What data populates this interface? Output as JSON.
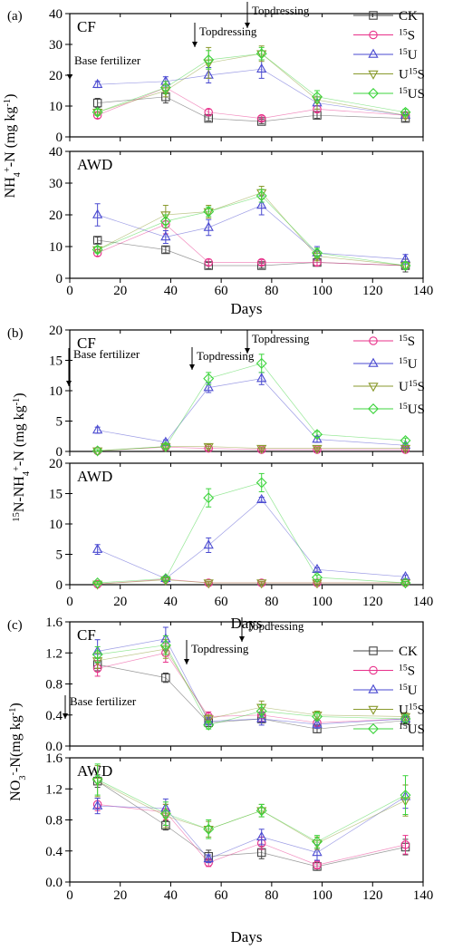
{
  "chart_data": [
    {
      "type": "scatter",
      "panel_label": "(a)",
      "ylabel": "NH4+-N (mg kg-1)",
      "xlabel": "Days",
      "xlim": [
        0,
        140
      ],
      "x_ticks": [
        0,
        20,
        40,
        60,
        80,
        100,
        120,
        140
      ],
      "legend_position": "top-right",
      "legend": [
        "CK",
        "15S",
        "15U",
        "U15S",
        "15US"
      ],
      "annotations": [
        {
          "text": "Base fertilizer",
          "x": 0
        },
        {
          "text": "Topdressing",
          "x": 47
        },
        {
          "text": "Topdressing",
          "x": 71
        }
      ],
      "x": [
        11,
        38,
        55,
        76,
        98,
        133
      ],
      "subplots": [
        {
          "title": "CF",
          "ylim": [
            0,
            40
          ],
          "y_ticks": [
            0,
            10,
            20,
            30,
            40
          ],
          "series": [
            {
              "name": "CK",
              "color": "#444444",
              "marker": "square",
              "values": [
                11,
                13,
                6,
                5,
                7,
                6
              ],
              "errors": [
                1.5,
                2,
                0.8,
                0.7,
                1,
                1
              ]
            },
            {
              "name": "15S",
              "color": "#e8308a",
              "marker": "circle",
              "values": [
                7,
                16,
                8,
                6,
                9,
                7
              ],
              "errors": [
                1,
                2,
                1,
                0.8,
                1,
                1
              ]
            },
            {
              "name": "15U",
              "color": "#4a4ad0",
              "marker": "triangle-up",
              "values": [
                17,
                18,
                20,
                22,
                11,
                7
              ],
              "errors": [
                1,
                1.5,
                2.5,
                3,
                2,
                1
              ]
            },
            {
              "name": "U15S",
              "color": "#8a9a2e",
              "marker": "triangle-down",
              "values": [
                8,
                15,
                24,
                27,
                12,
                7
              ],
              "errors": [
                1,
                2,
                5,
                2.5,
                3,
                1
              ]
            },
            {
              "name": "15US",
              "color": "#3cd43c",
              "marker": "diamond",
              "values": [
                8,
                16,
                25,
                27,
                13,
                8
              ],
              "errors": [
                1,
                2,
                3,
                2,
                2,
                1
              ]
            }
          ]
        },
        {
          "title": "AWD",
          "ylim": [
            0,
            40
          ],
          "y_ticks": [
            0,
            10,
            20,
            30,
            40
          ],
          "series": [
            {
              "name": "CK",
              "color": "#444444",
              "marker": "square",
              "values": [
                12,
                9,
                4,
                4,
                5,
                4
              ],
              "errors": [
                1,
                1,
                1,
                0.8,
                1,
                2
              ]
            },
            {
              "name": "15S",
              "color": "#e8308a",
              "marker": "circle",
              "values": [
                8,
                17,
                5,
                5,
                5,
                4
              ],
              "errors": [
                1,
                3,
                1,
                0.8,
                1,
                1
              ]
            },
            {
              "name": "15U",
              "color": "#4a4ad0",
              "marker": "triangle-up",
              "values": [
                20,
                13,
                16,
                23,
                8,
                6
              ],
              "errors": [
                3.5,
                2,
                2.5,
                3,
                2,
                1.5
              ]
            },
            {
              "name": "U15S",
              "color": "#8a9a2e",
              "marker": "triangle-down",
              "values": [
                9,
                20,
                21,
                27,
                7,
                4
              ],
              "errors": [
                1,
                3,
                2,
                2,
                1.5,
                1
              ]
            },
            {
              "name": "15US",
              "color": "#3cd43c",
              "marker": "diamond",
              "values": [
                9,
                18,
                21,
                26,
                8,
                4
              ],
              "errors": [
                1,
                2,
                1.5,
                2,
                1.5,
                1
              ]
            }
          ]
        }
      ]
    },
    {
      "type": "scatter",
      "panel_label": "(b)",
      "ylabel": "15N-NH4+-N (mg kg-1)",
      "xlabel": "Days",
      "xlim": [
        0,
        140
      ],
      "x_ticks": [
        0,
        20,
        40,
        60,
        80,
        100,
        120,
        140
      ],
      "legend_position": "top-right",
      "legend": [
        "15S",
        "15U",
        "U15S",
        "15US"
      ],
      "annotations": [
        {
          "text": "Base fertilizer",
          "x": 0
        },
        {
          "text": "Topdressing",
          "x": 47
        },
        {
          "text": "Topdressing",
          "x": 71
        }
      ],
      "x": [
        11,
        38,
        55,
        76,
        98,
        133
      ],
      "subplots": [
        {
          "title": "CF",
          "ylim": [
            0,
            20
          ],
          "y_ticks": [
            0,
            5,
            10,
            15,
            20
          ],
          "series": [
            {
              "name": "15S",
              "color": "#e8308a",
              "marker": "circle",
              "values": [
                0.1,
                0.7,
                0.5,
                0.3,
                0.3,
                0.3
              ],
              "errors": [
                0.2,
                0.3,
                0.3,
                0.2,
                0.2,
                0.2
              ]
            },
            {
              "name": "15U",
              "color": "#4a4ad0",
              "marker": "triangle-up",
              "values": [
                3.5,
                1.5,
                10.5,
                12,
                2,
                1
              ],
              "errors": [
                0.5,
                0.4,
                0.8,
                1,
                0.5,
                0.3
              ]
            },
            {
              "name": "U15S",
              "color": "#8a9a2e",
              "marker": "triangle-down",
              "values": [
                0.1,
                0.8,
                0.8,
                0.5,
                0.5,
                0.5
              ],
              "errors": [
                0.2,
                0.3,
                0.3,
                0.2,
                0.2,
                0.2
              ]
            },
            {
              "name": "15US",
              "color": "#3cd43c",
              "marker": "diamond",
              "values": [
                0.1,
                0.8,
                12,
                14.5,
                2.8,
                1.8
              ],
              "errors": [
                0.2,
                0.4,
                1,
                1.5,
                0.5,
                0.4
              ]
            }
          ]
        },
        {
          "title": "AWD",
          "ylim": [
            0,
            20
          ],
          "y_ticks": [
            0,
            5,
            10,
            15,
            20
          ],
          "series": [
            {
              "name": "15S",
              "color": "#e8308a",
              "marker": "circle",
              "values": [
                0.1,
                0.9,
                0.3,
                0.3,
                0.3,
                0.3
              ],
              "errors": [
                0.2,
                0.3,
                0.2,
                0.2,
                0.2,
                0.2
              ]
            },
            {
              "name": "15U",
              "color": "#4a4ad0",
              "marker": "triangle-up",
              "values": [
                5.8,
                1,
                6.5,
                14,
                2.5,
                1.3
              ],
              "errors": [
                0.8,
                0.3,
                1.2,
                0.4,
                0.3,
                0.3
              ]
            },
            {
              "name": "U15S",
              "color": "#8a9a2e",
              "marker": "triangle-down",
              "values": [
                0.1,
                0.8,
                0.3,
                0.3,
                0.3,
                0.3
              ],
              "errors": [
                0.2,
                0.3,
                0.2,
                0.2,
                0.2,
                0.2
              ]
            },
            {
              "name": "15US",
              "color": "#3cd43c",
              "marker": "diamond",
              "values": [
                0.3,
                1,
                14.3,
                16.8,
                1.2,
                0.3
              ],
              "errors": [
                0.2,
                0.3,
                1.5,
                1.5,
                0.4,
                0.2
              ]
            }
          ]
        }
      ]
    },
    {
      "type": "scatter",
      "panel_label": "(c)",
      "ylabel": "NO3--N(mg kg-1)",
      "xlabel": "Days",
      "xlim": [
        0,
        140
      ],
      "x_ticks": [
        0,
        20,
        40,
        60,
        80,
        100,
        120,
        140
      ],
      "legend_position": "top-right",
      "legend": [
        "CK",
        "15S",
        "15U",
        "U15S",
        "15US"
      ],
      "annotations": [
        {
          "text": "Base fertilizer",
          "x": 0
        },
        {
          "text": "Topdressing",
          "x": 47
        },
        {
          "text": "Topdressing",
          "x": 71
        }
      ],
      "x": [
        11,
        38,
        55,
        76,
        98,
        133
      ],
      "subplots": [
        {
          "title": "CF",
          "ylim": [
            0,
            1.6
          ],
          "y_ticks": [
            0.0,
            0.4,
            0.8,
            1.2,
            1.6
          ],
          "series": [
            {
              "name": "CK",
              "color": "#444444",
              "marker": "square",
              "values": [
                1.05,
                0.88,
                0.3,
                0.35,
                0.22,
                0.33
              ],
              "errors": [
                0.08,
                0.06,
                0.05,
                0.05,
                0.05,
                0.04
              ]
            },
            {
              "name": "15S",
              "color": "#e8308a",
              "marker": "circle",
              "values": [
                1.0,
                1.2,
                0.38,
                0.4,
                0.3,
                0.35
              ],
              "errors": [
                0.1,
                0.12,
                0.06,
                0.08,
                0.05,
                0.05
              ]
            },
            {
              "name": "15U",
              "color": "#4a4ad0",
              "marker": "triangle-up",
              "values": [
                1.22,
                1.38,
                0.32,
                0.35,
                0.28,
                0.35
              ],
              "errors": [
                0.15,
                0.15,
                0.05,
                0.08,
                0.05,
                0.05
              ]
            },
            {
              "name": "U15S",
              "color": "#8a9a2e",
              "marker": "triangle-down",
              "values": [
                1.1,
                1.25,
                0.35,
                0.5,
                0.4,
                0.38
              ],
              "errors": [
                0.1,
                0.12,
                0.05,
                0.08,
                0.05,
                0.05
              ]
            },
            {
              "name": "15US",
              "color": "#3cd43c",
              "marker": "diamond",
              "values": [
                1.18,
                1.3,
                0.27,
                0.45,
                0.38,
                0.35
              ],
              "errors": [
                0.1,
                0.12,
                0.05,
                0.08,
                0.05,
                0.05
              ]
            }
          ]
        },
        {
          "title": "AWD",
          "ylim": [
            0,
            1.6
          ],
          "y_ticks": [
            0.0,
            0.4,
            0.8,
            1.2,
            1.6
          ],
          "series": [
            {
              "name": "CK",
              "color": "#444444",
              "marker": "square",
              "values": [
                1.3,
                0.73,
                0.33,
                0.38,
                0.2,
                0.45
              ],
              "errors": [
                0.08,
                0.06,
                0.08,
                0.08,
                0.05,
                0.1
              ]
            },
            {
              "name": "15S",
              "color": "#e8308a",
              "marker": "circle",
              "values": [
                1.0,
                0.9,
                0.25,
                0.5,
                0.22,
                0.48
              ],
              "errors": [
                0.08,
                0.1,
                0.05,
                0.08,
                0.05,
                0.12
              ]
            },
            {
              "name": "15U",
              "color": "#4a4ad0",
              "marker": "triangle-up",
              "values": [
                0.98,
                0.95,
                0.3,
                0.58,
                0.38,
                1.1
              ],
              "errors": [
                0.1,
                0.12,
                0.05,
                0.1,
                0.1,
                0.15
              ]
            },
            {
              "name": "U15S",
              "color": "#8a9a2e",
              "marker": "triangle-down",
              "values": [
                1.3,
                0.85,
                0.68,
                0.92,
                0.5,
                1.05
              ],
              "errors": [
                0.2,
                0.15,
                0.1,
                0.08,
                0.08,
                0.2
              ]
            },
            {
              "name": "15US",
              "color": "#3cd43c",
              "marker": "diamond",
              "values": [
                1.32,
                0.88,
                0.68,
                0.92,
                0.52,
                1.12
              ],
              "errors": [
                0.2,
                0.15,
                0.12,
                0.08,
                0.08,
                0.25
              ]
            }
          ]
        }
      ]
    }
  ]
}
